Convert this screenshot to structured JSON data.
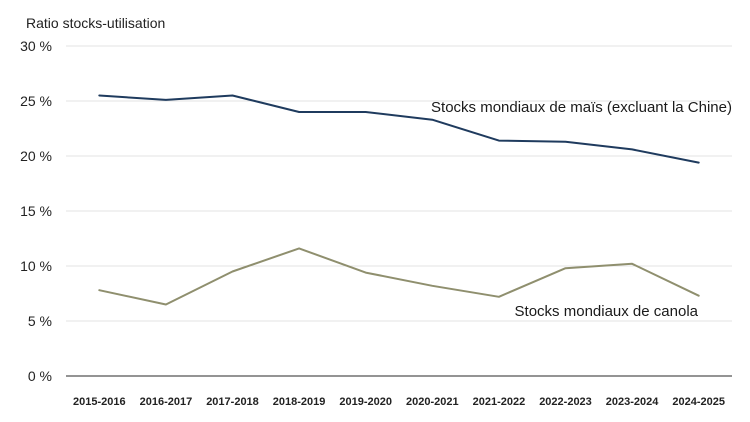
{
  "chart_data": {
    "type": "line",
    "title": "",
    "ylabel": "Ratio stocks-utilisation",
    "xlabel": "",
    "categories": [
      "2015-2016",
      "2016-2017",
      "2017-2018",
      "2018-2019",
      "2019-2020",
      "2020-2021",
      "2021-2022",
      "2022-2023",
      "2023-2024",
      "2024-2025"
    ],
    "ylim": [
      0,
      30
    ],
    "yticks": [
      0,
      5,
      10,
      15,
      20,
      25,
      30
    ],
    "ytick_labels": [
      "0 %",
      "5 %",
      "10 %",
      "15 %",
      "20 %",
      "25 %",
      "30 %"
    ],
    "grid": "horizontal",
    "series": [
      {
        "name": "Stocks mondiaux de maïs (excluant la Chine)",
        "color": "#1f3b5e",
        "values": [
          25.5,
          25.1,
          25.5,
          24.0,
          24.0,
          23.3,
          21.4,
          21.3,
          20.6,
          19.4
        ]
      },
      {
        "name": "Stocks mondiaux de canola",
        "color": "#8f8f6e",
        "values": [
          7.8,
          6.5,
          9.5,
          11.6,
          9.4,
          8.2,
          7.2,
          9.8,
          10.2,
          7.3
        ]
      }
    ]
  }
}
